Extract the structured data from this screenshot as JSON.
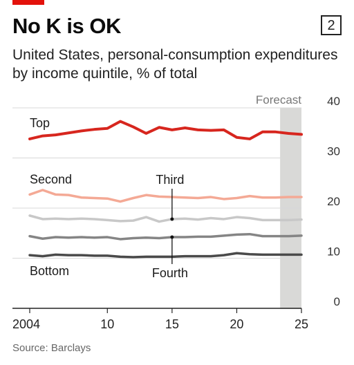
{
  "header": {
    "title": "No K is OK",
    "chart_number": "2",
    "subtitle": "United States, personal-consumption expenditures by income quintile, % of total"
  },
  "source": "Source: Barclays",
  "chart_data": {
    "type": "line",
    "title": "No K is OK",
    "subtitle": "United States, personal-consumption expenditures by income quintile, % of total",
    "xlabel": "",
    "ylabel": "",
    "xlim": [
      2004,
      2025
    ],
    "ylim": [
      0,
      40
    ],
    "y_axis_side": "right",
    "y_ticks": [
      0,
      10,
      20,
      30,
      40
    ],
    "y_tick_labels": [
      "0",
      "10",
      "20",
      "30",
      "40"
    ],
    "x_ticks": [
      2004,
      2010,
      2015,
      2020,
      2025
    ],
    "x_tick_labels": [
      "2004",
      "10",
      "15",
      "20",
      "25"
    ],
    "grid": true,
    "forecast": {
      "label": "Forecast",
      "start": 2023,
      "end": 2025
    },
    "x": [
      2004,
      2005,
      2006,
      2007,
      2008,
      2009,
      2010,
      2011,
      2012,
      2013,
      2014,
      2015,
      2016,
      2017,
      2018,
      2019,
      2020,
      2021,
      2022,
      2023,
      2024,
      2025
    ],
    "series": [
      {
        "name": "Top",
        "color": "#d7261e",
        "width": 4,
        "values": [
          33.8,
          34.4,
          34.6,
          35.0,
          35.4,
          35.7,
          35.9,
          37.3,
          36.2,
          34.9,
          36.1,
          35.6,
          36.0,
          35.6,
          35.5,
          35.6,
          34.1,
          33.8,
          35.2,
          35.2,
          34.9,
          34.7
        ]
      },
      {
        "name": "Second",
        "color": "#f4a995",
        "width": 3.5,
        "values": [
          22.7,
          23.6,
          22.7,
          22.6,
          22.1,
          22.0,
          21.9,
          21.3,
          22.0,
          22.6,
          22.3,
          22.2,
          22.1,
          22.0,
          22.2,
          21.8,
          22.0,
          22.4,
          22.1,
          22.1,
          22.2,
          22.2
        ]
      },
      {
        "name": "Third",
        "color": "#c8c8c8",
        "width": 3.5,
        "values": [
          18.5,
          17.8,
          17.9,
          17.8,
          17.9,
          17.8,
          17.6,
          17.4,
          17.5,
          18.2,
          17.3,
          17.8,
          17.9,
          17.7,
          18.0,
          17.8,
          18.2,
          18.0,
          17.6,
          17.6,
          17.6,
          17.7
        ]
      },
      {
        "name": "Fourth",
        "color": "#858585",
        "width": 3.5,
        "values": [
          14.4,
          13.9,
          14.2,
          14.1,
          14.2,
          14.1,
          14.2,
          13.8,
          14.0,
          14.1,
          14.0,
          14.2,
          14.2,
          14.3,
          14.3,
          14.5,
          14.7,
          14.8,
          14.4,
          14.4,
          14.4,
          14.5
        ]
      },
      {
        "name": "Bottom",
        "color": "#4a4a4a",
        "width": 3.5,
        "values": [
          10.6,
          10.4,
          10.7,
          10.6,
          10.6,
          10.5,
          10.5,
          10.3,
          10.2,
          10.3,
          10.3,
          10.3,
          10.4,
          10.4,
          10.4,
          10.6,
          11.0,
          10.8,
          10.7,
          10.7,
          10.7,
          10.7
        ]
      }
    ],
    "annotations": [
      {
        "text": "Top",
        "series": "Top"
      },
      {
        "text": "Second",
        "series": "Second"
      },
      {
        "text": "Third",
        "series": "Third",
        "x": 2015
      },
      {
        "text": "Fourth",
        "series": "Fourth",
        "x": 2015
      },
      {
        "text": "Bottom",
        "series": "Bottom"
      }
    ]
  }
}
